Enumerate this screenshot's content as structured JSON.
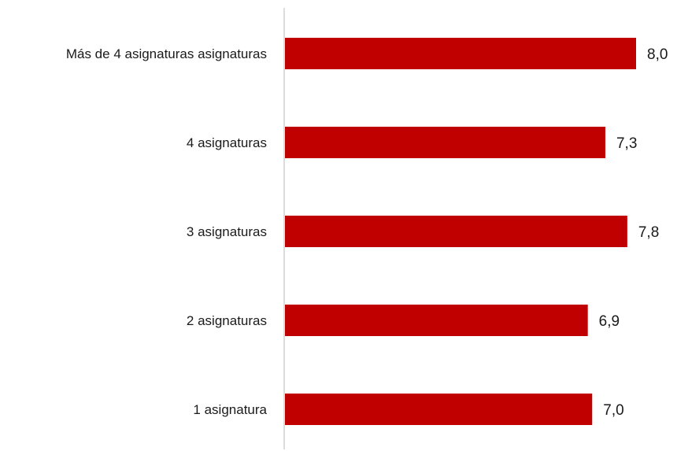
{
  "chart_data": {
    "type": "bar",
    "orientation": "horizontal",
    "categories": [
      "Más  de 4 asignaturas asignaturas",
      "4 asignaturas",
      "3 asignaturas",
      "2 asignaturas",
      "1 asignatura"
    ],
    "values": [
      8.0,
      7.3,
      7.8,
      6.9,
      7.0
    ],
    "value_labels": [
      "8,0",
      "7,3",
      "7,8",
      "6,9",
      "7,0"
    ],
    "xlim": [
      0,
      8.0
    ],
    "bar_color": "#c00000",
    "axis_color": "#d0d0d0",
    "grid": false,
    "title": "",
    "xlabel": "",
    "ylabel": ""
  }
}
